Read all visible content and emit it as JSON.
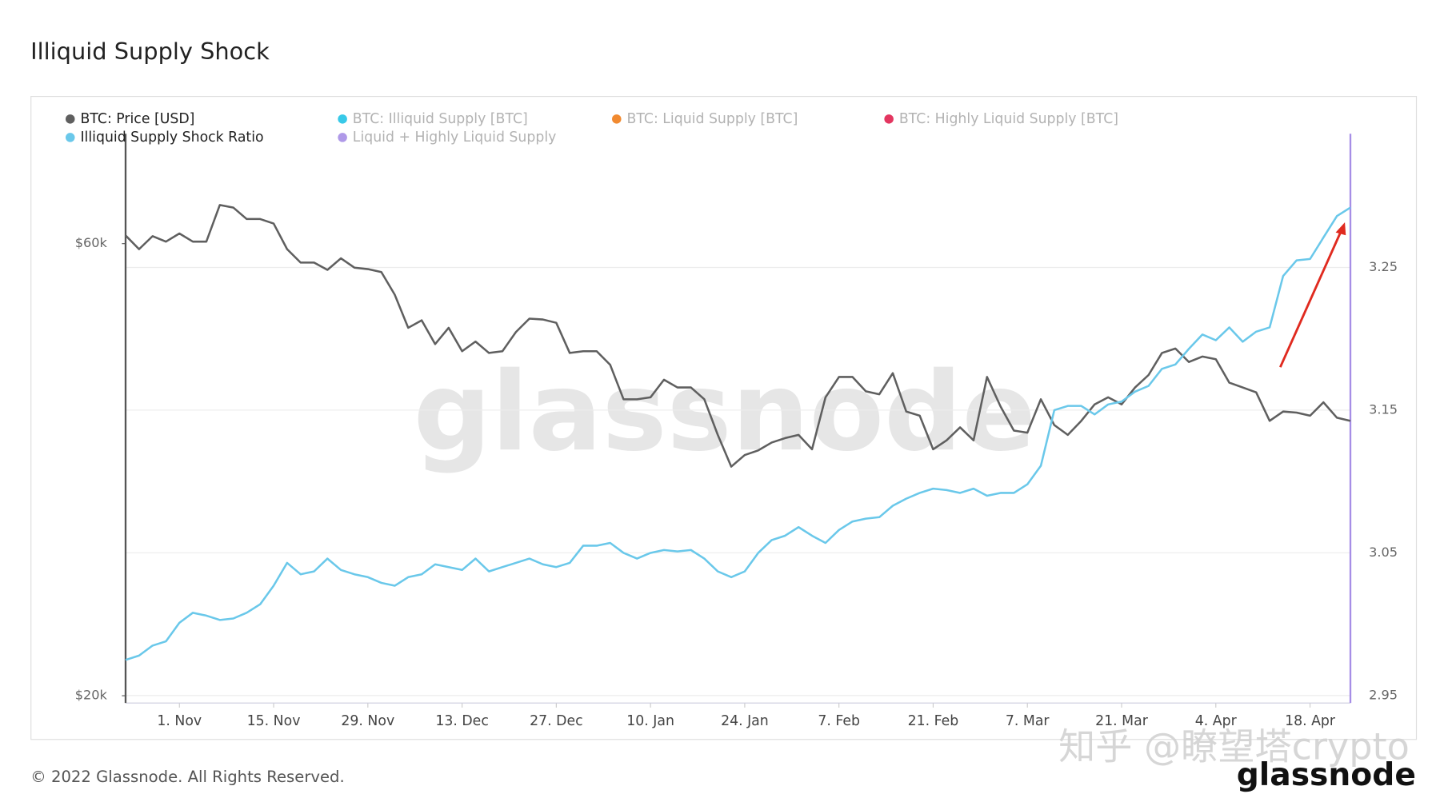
{
  "chart_data": {
    "type": "line",
    "title": "Illiquid Supply Shock",
    "copyright": "© 2022 Glassnode. All Rights Reserved.",
    "watermark": "glassnode",
    "logo": "glassnode",
    "overlay_text": "知乎 @瞭望塔crypto",
    "ylog": true,
    "grid": true,
    "legend_position": "top-left",
    "x": [
      "10-24",
      "10-26",
      "10-28",
      "10-30",
      "11-01",
      "11-03",
      "11-05",
      "11-07",
      "11-09",
      "11-11",
      "11-13",
      "11-15",
      "11-17",
      "11-19",
      "11-21",
      "11-23",
      "11-25",
      "11-27",
      "11-29",
      "12-01",
      "12-03",
      "12-05",
      "12-07",
      "12-09",
      "12-11",
      "12-13",
      "12-15",
      "12-17",
      "12-19",
      "12-21",
      "12-23",
      "12-25",
      "12-27",
      "12-29",
      "12-31",
      "01-02",
      "01-04",
      "01-06",
      "01-08",
      "01-10",
      "01-12",
      "01-14",
      "01-16",
      "01-18",
      "01-20",
      "01-22",
      "01-24",
      "01-26",
      "01-28",
      "01-30",
      "02-01",
      "02-03",
      "02-05",
      "02-07",
      "02-09",
      "02-11",
      "02-13",
      "02-15",
      "02-17",
      "02-19",
      "02-21",
      "02-23",
      "02-25",
      "02-27",
      "03-01",
      "03-03",
      "03-05",
      "03-07",
      "03-09",
      "03-11",
      "03-13",
      "03-15",
      "03-17",
      "03-19",
      "03-21",
      "03-23",
      "03-25",
      "03-27",
      "03-29",
      "03-31",
      "04-02",
      "04-04",
      "04-06",
      "04-08",
      "04-10",
      "04-12",
      "04-14",
      "04-16",
      "04-18",
      "04-20",
      "04-22",
      "04-24"
    ],
    "xlim": [
      "10-24",
      "04-24"
    ],
    "xticks": [
      {
        "value": "11-01",
        "label": "1. Nov"
      },
      {
        "value": "11-15",
        "label": "15. Nov"
      },
      {
        "value": "11-29",
        "label": "29. Nov"
      },
      {
        "value": "12-13",
        "label": "13. Dec"
      },
      {
        "value": "12-27",
        "label": "27. Dec"
      },
      {
        "value": "01-10",
        "label": "10. Jan"
      },
      {
        "value": "01-24",
        "label": "24. Jan"
      },
      {
        "value": "02-07",
        "label": "7. Feb"
      },
      {
        "value": "02-21",
        "label": "21. Feb"
      },
      {
        "value": "03-07",
        "label": "7. Mar"
      },
      {
        "value": "03-21",
        "label": "21. Mar"
      },
      {
        "value": "04-04",
        "label": "4. Apr"
      },
      {
        "value": "04-18",
        "label": "18. Apr"
      }
    ],
    "ylim": [
      19650,
      78360
    ],
    "yticks": [
      {
        "value": 20000,
        "label": "$20k"
      },
      {
        "value": 60000,
        "label": "$60k"
      }
    ],
    "y2lim": [
      2.9448,
      3.3437
    ],
    "y2ticks": [
      2.95,
      3.05,
      3.15,
      3.25
    ],
    "series": [
      {
        "name": "BTC: Price [USD]",
        "color": "#5f5f5f",
        "values": [
          61200,
          59200,
          61100,
          60300,
          61500,
          60300,
          60300,
          65900,
          65500,
          63700,
          63700,
          63000,
          59200,
          57300,
          57300,
          56300,
          57900,
          56600,
          56400,
          56000,
          53000,
          48900,
          49800,
          47000,
          48900,
          46200,
          47300,
          46000,
          46200,
          48400,
          50000,
          49900,
          49500,
          46000,
          46200,
          46200,
          44700,
          41100,
          41100,
          41300,
          43100,
          42300,
          42300,
          41100,
          37700,
          34900,
          35900,
          36300,
          37000,
          37400,
          37700,
          36400,
          41300,
          43400,
          43400,
          41900,
          41600,
          43800,
          39900,
          39500,
          36400,
          37200,
          38400,
          37200,
          43400,
          40400,
          38100,
          37900,
          41100,
          38600,
          37700,
          39000,
          40600,
          41300,
          40600,
          42300,
          43600,
          46000,
          46500,
          45000,
          45600,
          45300,
          42800,
          42300,
          41800,
          39000,
          39900,
          39800,
          39500,
          40800,
          39300,
          39000
        ]
      },
      {
        "name": "Illiquid Supply Shock Ratio",
        "color": "#6ac8ea",
        "axis": "y2",
        "values": [
          2.975,
          2.978,
          2.985,
          2.988,
          3.001,
          3.008,
          3.006,
          3.003,
          3.004,
          3.008,
          3.014,
          3.027,
          3.043,
          3.035,
          3.037,
          3.046,
          3.038,
          3.035,
          3.033,
          3.029,
          3.027,
          3.033,
          3.035,
          3.042,
          3.04,
          3.038,
          3.046,
          3.037,
          3.04,
          3.043,
          3.046,
          3.042,
          3.04,
          3.043,
          3.055,
          3.055,
          3.057,
          3.05,
          3.046,
          3.05,
          3.052,
          3.051,
          3.052,
          3.046,
          3.037,
          3.033,
          3.037,
          3.05,
          3.059,
          3.062,
          3.068,
          3.062,
          3.057,
          3.066,
          3.072,
          3.074,
          3.075,
          3.083,
          3.088,
          3.092,
          3.095,
          3.094,
          3.092,
          3.095,
          3.09,
          3.092,
          3.092,
          3.098,
          3.111,
          3.15,
          3.153,
          3.153,
          3.147,
          3.154,
          3.156,
          3.163,
          3.167,
          3.179,
          3.182,
          3.193,
          3.203,
          3.199,
          3.208,
          3.198,
          3.205,
          3.208,
          3.244,
          3.255,
          3.256,
          3.271,
          3.286,
          3.292
        ]
      },
      {
        "name": "BTC: Illiquid Supply [BTC]",
        "color": "#22c3e6",
        "visible": false
      },
      {
        "name": "BTC: Liquid Supply [BTC]",
        "color": "#f07d1a",
        "visible": false
      },
      {
        "name": "BTC: Highly Liquid Supply [BTC]",
        "color": "#e0204f",
        "visible": false
      },
      {
        "name": "Liquid + Highly Liquid Supply",
        "color": "#a68ee6",
        "visible": false
      }
    ]
  }
}
